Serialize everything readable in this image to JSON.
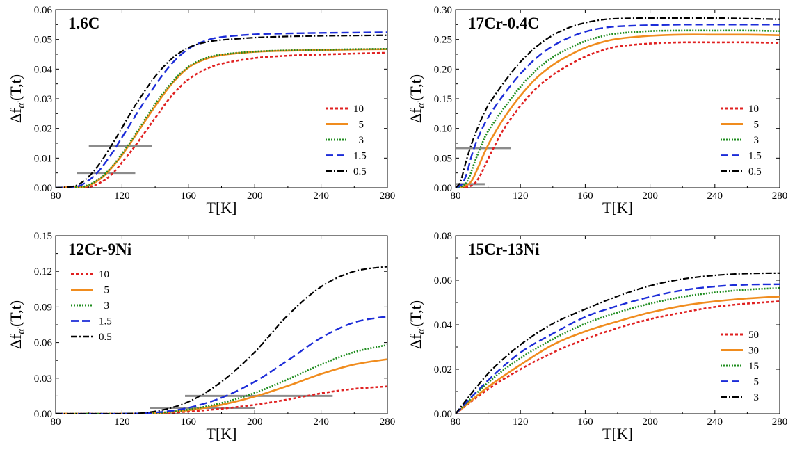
{
  "chart_data": [
    {
      "type": "line",
      "title": "1.6C",
      "xlabel": "T[K]",
      "ylabel": "Δf_α'(T,t)",
      "xlim": [
        80,
        280
      ],
      "ylim": [
        0,
        0.06
      ],
      "xticks": [
        "80",
        "120",
        "160",
        "200",
        "240",
        "280"
      ],
      "yticks": [
        "0.00",
        "0.01",
        "0.02",
        "0.03",
        "0.04",
        "0.05",
        "0.06"
      ],
      "legend_position": "lower-right",
      "colors": [
        "#e02020",
        "#f08c1e",
        "#1e8c1e",
        "#1c2cd8",
        "#000000"
      ],
      "series": [
        {
          "name": "10",
          "style": "dotted-dense",
          "color": "#e02020",
          "x": [
            80,
            100,
            105,
            110,
            115,
            120,
            125,
            130,
            140,
            150,
            160,
            170,
            180,
            200,
            220,
            240,
            260,
            280
          ],
          "y": [
            0,
            0.0004,
            0.0012,
            0.0028,
            0.0052,
            0.0085,
            0.012,
            0.0157,
            0.0235,
            0.031,
            0.0365,
            0.0398,
            0.0418,
            0.0437,
            0.0445,
            0.0449,
            0.0452,
            0.0455
          ]
        },
        {
          "name": "5",
          "style": "solid",
          "color": "#f08c1e",
          "x": [
            80,
            95,
            100,
            105,
            110,
            115,
            120,
            125,
            130,
            140,
            150,
            160,
            170,
            180,
            200,
            220,
            240,
            260,
            280
          ],
          "y": [
            0,
            0.0002,
            0.0008,
            0.0022,
            0.0045,
            0.0075,
            0.011,
            0.015,
            0.0192,
            0.0275,
            0.035,
            0.0405,
            0.0433,
            0.0447,
            0.0458,
            0.0462,
            0.0464,
            0.0466,
            0.0467
          ]
        },
        {
          "name": "3",
          "style": "dotted",
          "color": "#1e8c1e",
          "x": [
            80,
            95,
            100,
            105,
            110,
            115,
            120,
            125,
            130,
            140,
            150,
            160,
            170,
            180,
            200,
            220,
            240,
            260,
            280
          ],
          "y": [
            0,
            0.0003,
            0.001,
            0.0025,
            0.0048,
            0.0078,
            0.0115,
            0.0155,
            0.0198,
            0.0282,
            0.0355,
            0.0408,
            0.0436,
            0.0449,
            0.0459,
            0.0463,
            0.0465,
            0.0467,
            0.0468
          ]
        },
        {
          "name": "1.5",
          "style": "dashed",
          "color": "#1c2cd8",
          "x": [
            80,
            90,
            95,
            100,
            105,
            110,
            115,
            120,
            125,
            130,
            140,
            150,
            160,
            170,
            180,
            200,
            220,
            240,
            260,
            280
          ],
          "y": [
            0,
            0.0002,
            0.0008,
            0.0025,
            0.005,
            0.0085,
            0.0125,
            0.017,
            0.0215,
            0.026,
            0.0345,
            0.0418,
            0.0468,
            0.0495,
            0.0508,
            0.0517,
            0.052,
            0.0522,
            0.0523,
            0.0524
          ]
        },
        {
          "name": "0.5",
          "style": "dashdot",
          "color": "#000000",
          "x": [
            80,
            90,
            95,
            100,
            105,
            110,
            115,
            120,
            125,
            130,
            140,
            150,
            160,
            170,
            180,
            200,
            220,
            240,
            260,
            280
          ],
          "y": [
            0,
            0.0004,
            0.0015,
            0.0038,
            0.007,
            0.011,
            0.0155,
            0.0202,
            0.025,
            0.0295,
            0.0375,
            0.0435,
            0.0472,
            0.049,
            0.0498,
            0.0506,
            0.051,
            0.0512,
            0.0513,
            0.0514
          ]
        }
      ],
      "gray_bars": [
        {
          "x": [
            100,
            138
          ],
          "y": 0.014
        },
        {
          "x": [
            93,
            128
          ],
          "y": 0.005
        }
      ]
    },
    {
      "type": "line",
      "title": "17Cr-0.4C",
      "xlabel": "T[K]",
      "ylabel": "Δf_α'(T,t)",
      "xlim": [
        80,
        280
      ],
      "ylim": [
        0,
        0.3
      ],
      "xticks": [
        "80",
        "120",
        "160",
        "200",
        "240",
        "280"
      ],
      "yticks": [
        "0.00",
        "0.05",
        "0.10",
        "0.15",
        "0.20",
        "0.25",
        "0.30"
      ],
      "legend_position": "lower-right",
      "colors": [
        "#e02020",
        "#f08c1e",
        "#1e8c1e",
        "#1c2cd8",
        "#000000"
      ],
      "series": [
        {
          "name": "10",
          "style": "dotted-dense",
          "color": "#e02020",
          "x": [
            80,
            88,
            92,
            96,
            100,
            104,
            110,
            120,
            130,
            140,
            150,
            160,
            170,
            180,
            200,
            220,
            240,
            260,
            280
          ],
          "y": [
            0,
            0.002,
            0.008,
            0.025,
            0.048,
            0.07,
            0.1,
            0.138,
            0.168,
            0.19,
            0.207,
            0.221,
            0.231,
            0.238,
            0.243,
            0.245,
            0.245,
            0.245,
            0.244
          ]
        },
        {
          "name": "5",
          "style": "solid",
          "color": "#f08c1e",
          "x": [
            80,
            86,
            90,
            94,
            98,
            102,
            110,
            120,
            130,
            140,
            150,
            160,
            170,
            180,
            200,
            220,
            240,
            260,
            280
          ],
          "y": [
            0,
            0.003,
            0.012,
            0.035,
            0.06,
            0.082,
            0.118,
            0.155,
            0.185,
            0.207,
            0.223,
            0.236,
            0.245,
            0.251,
            0.256,
            0.258,
            0.258,
            0.258,
            0.257
          ]
        },
        {
          "name": "3",
          "style": "dotted",
          "color": "#1e8c1e",
          "x": [
            80,
            85,
            88,
            92,
            96,
            100,
            110,
            120,
            130,
            140,
            150,
            160,
            170,
            180,
            200,
            220,
            240,
            260,
            280
          ],
          "y": [
            0,
            0.004,
            0.015,
            0.045,
            0.072,
            0.095,
            0.135,
            0.17,
            0.199,
            0.22,
            0.235,
            0.247,
            0.255,
            0.26,
            0.264,
            0.265,
            0.265,
            0.265,
            0.264
          ]
        },
        {
          "name": "1.5",
          "style": "dashed",
          "color": "#1c2cd8",
          "x": [
            80,
            84,
            87,
            90,
            94,
            100,
            110,
            120,
            130,
            140,
            150,
            160,
            170,
            180,
            200,
            220,
            240,
            260,
            280
          ],
          "y": [
            0,
            0.006,
            0.025,
            0.055,
            0.085,
            0.118,
            0.158,
            0.192,
            0.219,
            0.239,
            0.253,
            0.263,
            0.269,
            0.272,
            0.274,
            0.275,
            0.275,
            0.275,
            0.275
          ]
        },
        {
          "name": "0.5",
          "style": "dashdot",
          "color": "#000000",
          "x": [
            80,
            83,
            86,
            90,
            95,
            100,
            110,
            120,
            130,
            140,
            150,
            160,
            170,
            180,
            200,
            220,
            240,
            260,
            280
          ],
          "y": [
            0,
            0.01,
            0.04,
            0.075,
            0.11,
            0.138,
            0.178,
            0.212,
            0.238,
            0.257,
            0.27,
            0.278,
            0.283,
            0.285,
            0.286,
            0.286,
            0.286,
            0.285,
            0.284
          ]
        }
      ],
      "gray_bars": [
        {
          "x": [
            80,
            114
          ],
          "y": 0.067
        },
        {
          "x": [
            80,
            98
          ],
          "y": 0.006
        }
      ]
    },
    {
      "type": "line",
      "title": "12Cr-9Ni",
      "xlabel": "T[K]",
      "ylabel": "Δf_α'(T,t)",
      "xlim": [
        80,
        280
      ],
      "ylim": [
        0,
        0.15
      ],
      "xticks": [
        "80",
        "120",
        "160",
        "200",
        "240",
        "280"
      ],
      "yticks": [
        "0.00",
        "0.03",
        "0.06",
        "0.09",
        "0.12",
        "0.15"
      ],
      "legend_position": "upper-left",
      "colors": [
        "#e02020",
        "#f08c1e",
        "#1e8c1e",
        "#1c2cd8",
        "#000000"
      ],
      "series": [
        {
          "name": "10",
          "style": "dotted-dense",
          "color": "#e02020",
          "x": [
            80,
            120,
            140,
            160,
            180,
            200,
            220,
            240,
            260,
            280
          ],
          "y": [
            0,
            0,
            0.0003,
            0.0018,
            0.0042,
            0.0075,
            0.012,
            0.0172,
            0.021,
            0.023
          ]
        },
        {
          "name": "5",
          "style": "solid",
          "color": "#f08c1e",
          "x": [
            80,
            120,
            140,
            160,
            180,
            200,
            220,
            240,
            260,
            280
          ],
          "y": [
            0,
            0,
            0.0005,
            0.003,
            0.0075,
            0.0145,
            0.0235,
            0.0335,
            0.0415,
            0.046
          ]
        },
        {
          "name": "3",
          "style": "dotted",
          "color": "#1e8c1e",
          "x": [
            80,
            120,
            140,
            160,
            180,
            200,
            220,
            240,
            260,
            280
          ],
          "y": [
            0,
            0,
            0.0006,
            0.0035,
            0.009,
            0.0175,
            0.029,
            0.0415,
            0.052,
            0.058
          ]
        },
        {
          "name": "1.5",
          "style": "dashed",
          "color": "#1c2cd8",
          "x": [
            80,
            120,
            140,
            160,
            180,
            200,
            220,
            240,
            260,
            280
          ],
          "y": [
            0,
            0,
            0.001,
            0.005,
            0.0135,
            0.027,
            0.045,
            0.064,
            0.077,
            0.082
          ]
        },
        {
          "name": "0.5",
          "style": "dashdot",
          "color": "#000000",
          "x": [
            80,
            120,
            140,
            160,
            180,
            200,
            220,
            240,
            260,
            280
          ],
          "y": [
            0,
            0,
            0.002,
            0.01,
            0.027,
            0.052,
            0.083,
            0.107,
            0.12,
            0.124
          ]
        }
      ],
      "gray_bars": [
        {
          "x": [
            158,
            247
          ],
          "y": 0.015
        },
        {
          "x": [
            137,
            200
          ],
          "y": 0.005
        }
      ]
    },
    {
      "type": "line",
      "title": "15Cr-13Ni",
      "xlabel": "T[K]",
      "ylabel": "Δf_α'(T,t)",
      "xlim": [
        80,
        280
      ],
      "ylim": [
        0,
        0.08
      ],
      "xticks": [
        "80",
        "120",
        "160",
        "200",
        "240",
        "280"
      ],
      "yticks": [
        "0.00",
        "0.02",
        "0.04",
        "0.06",
        "0.08"
      ],
      "legend_position": "lower-right",
      "colors": [
        "#e02020",
        "#f08c1e",
        "#1e8c1e",
        "#1c2cd8",
        "#000000"
      ],
      "series": [
        {
          "name": "50",
          "style": "dotted-dense",
          "color": "#e02020",
          "x": [
            80,
            100,
            120,
            140,
            160,
            180,
            200,
            220,
            240,
            260,
            280
          ],
          "y": [
            0,
            0.011,
            0.02,
            0.0275,
            0.0335,
            0.0385,
            0.0425,
            0.0455,
            0.048,
            0.0495,
            0.0505
          ]
        },
        {
          "name": "30",
          "style": "solid",
          "color": "#f08c1e",
          "x": [
            80,
            100,
            120,
            140,
            160,
            180,
            200,
            220,
            240,
            260,
            280
          ],
          "y": [
            0,
            0.012,
            0.022,
            0.031,
            0.037,
            0.0415,
            0.0455,
            0.0485,
            0.0505,
            0.0518,
            0.0527
          ]
        },
        {
          "name": "15",
          "style": "dotted",
          "color": "#1e8c1e",
          "x": [
            80,
            100,
            120,
            140,
            160,
            180,
            200,
            220,
            240,
            260,
            280
          ],
          "y": [
            0,
            0.014,
            0.025,
            0.0335,
            0.0405,
            0.0455,
            0.0495,
            0.0525,
            0.0545,
            0.0558,
            0.0565
          ]
        },
        {
          "name": "5",
          "style": "dashed",
          "color": "#1c2cd8",
          "x": [
            80,
            100,
            120,
            140,
            160,
            180,
            200,
            220,
            240,
            260,
            280
          ],
          "y": [
            0,
            0.015,
            0.0275,
            0.036,
            0.0435,
            0.0485,
            0.0525,
            0.0555,
            0.0572,
            0.058,
            0.0582
          ]
        },
        {
          "name": "3",
          "style": "dashdot",
          "color": "#000000",
          "x": [
            80,
            100,
            120,
            140,
            160,
            180,
            200,
            220,
            240,
            260,
            280
          ],
          "y": [
            0,
            0.018,
            0.031,
            0.0405,
            0.047,
            0.0528,
            0.0575,
            0.0605,
            0.0622,
            0.063,
            0.0632
          ]
        }
      ],
      "gray_bars": []
    }
  ]
}
